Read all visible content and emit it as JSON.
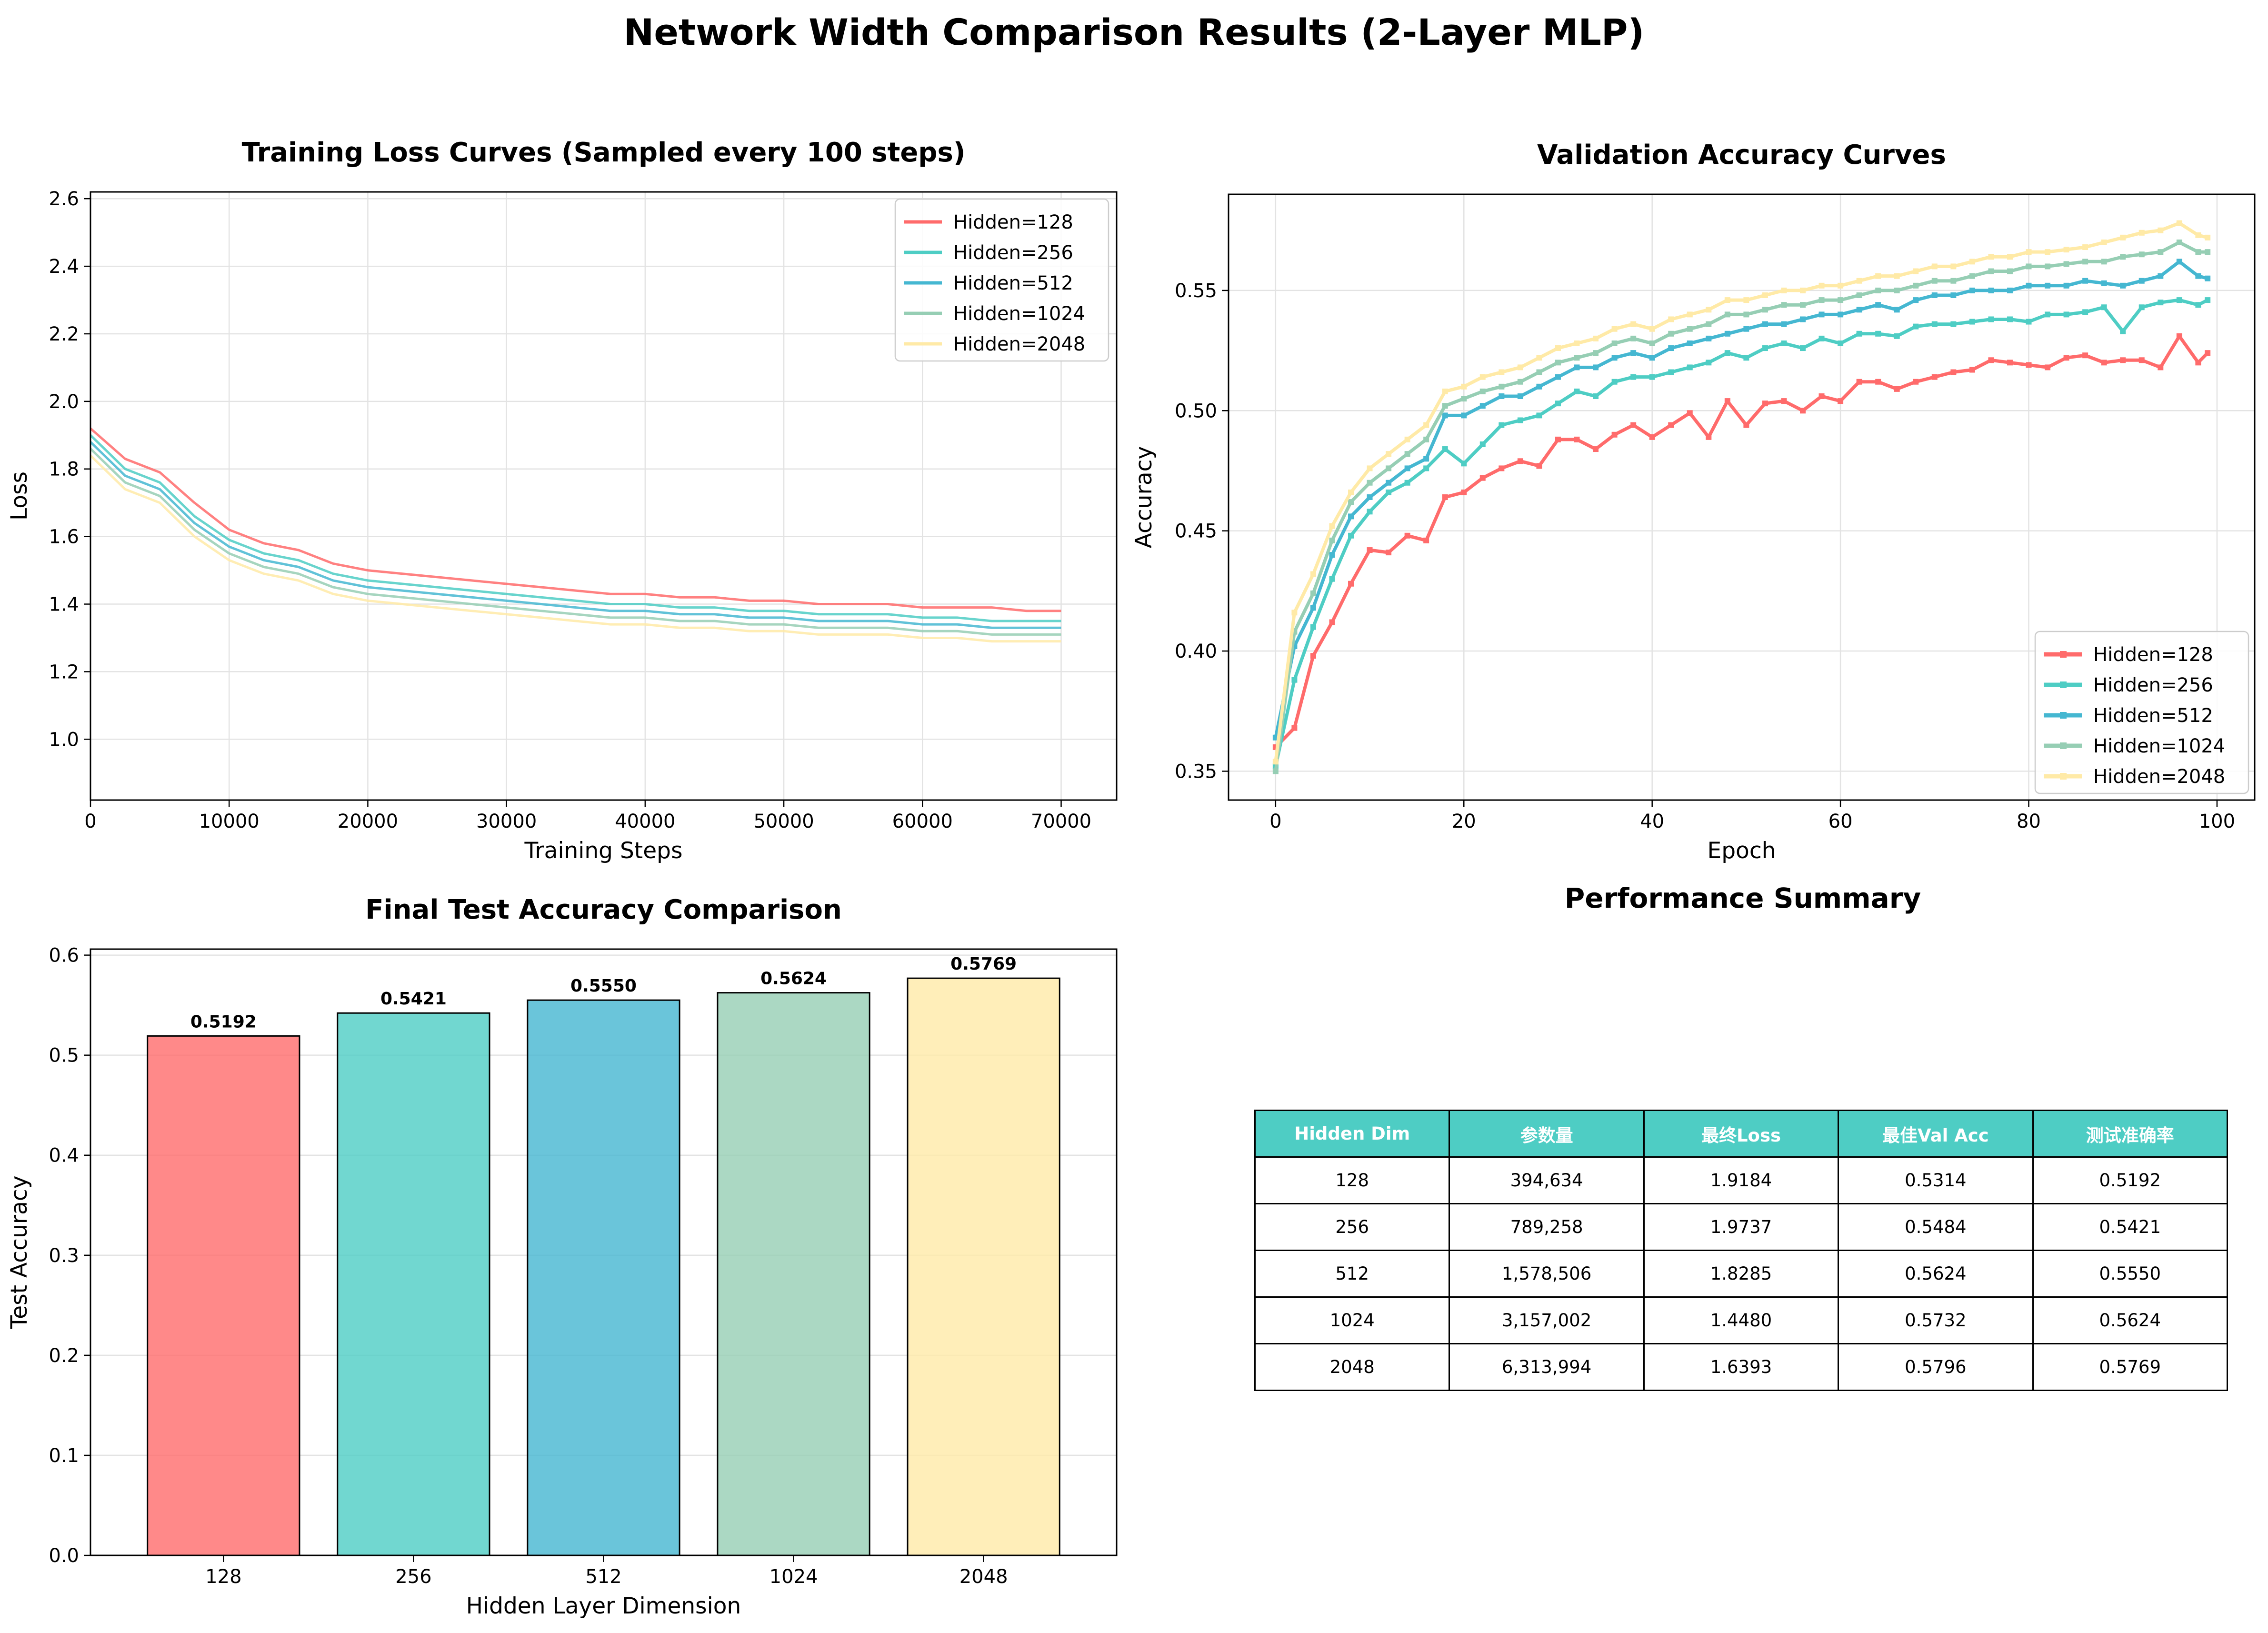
{
  "figure": {
    "title": "Network Width Comparison Results (2-Layer MLP)"
  },
  "colors": {
    "128": "#ff6b6b",
    "256": "#4ecdc4",
    "512": "#45b7d1",
    "1024": "#96ceb4",
    "2048": "#ffeaa7"
  },
  "chart_data": [
    {
      "type": "line",
      "title": "Training Loss Curves (Sampled every 100 steps)",
      "xlabel": "Training Steps",
      "ylabel": "Loss",
      "xlim": [
        0,
        74000
      ],
      "ylim": [
        0.82,
        2.62
      ],
      "xticks": [
        0,
        10000,
        20000,
        30000,
        40000,
        50000,
        60000,
        70000
      ],
      "yticks": [
        1.0,
        1.2,
        1.4,
        1.6,
        1.8,
        2.0,
        2.2,
        2.4,
        2.6
      ],
      "grid": true,
      "legend_position": "upper right",
      "series": [
        {
          "name": "Hidden=128",
          "color": "#ff6b6b",
          "x": [
            0,
            2500,
            5000,
            7500,
            10000,
            12500,
            15000,
            17500,
            20000,
            22500,
            25000,
            27500,
            30000,
            32500,
            35000,
            37500,
            40000,
            42500,
            45000,
            47500,
            50000,
            52500,
            55000,
            57500,
            60000,
            62500,
            65000,
            67500,
            70000
          ],
          "y": [
            1.92,
            1.83,
            1.79,
            1.7,
            1.62,
            1.58,
            1.56,
            1.52,
            1.5,
            1.49,
            1.48,
            1.47,
            1.46,
            1.45,
            1.44,
            1.43,
            1.43,
            1.42,
            1.42,
            1.41,
            1.41,
            1.4,
            1.4,
            1.4,
            1.39,
            1.39,
            1.39,
            1.38,
            1.38
          ]
        },
        {
          "name": "Hidden=256",
          "color": "#4ecdc4",
          "x": [
            0,
            2500,
            5000,
            7500,
            10000,
            12500,
            15000,
            17500,
            20000,
            22500,
            25000,
            27500,
            30000,
            32500,
            35000,
            37500,
            40000,
            42500,
            45000,
            47500,
            50000,
            52500,
            55000,
            57500,
            60000,
            62500,
            65000,
            67500,
            70000
          ],
          "y": [
            1.9,
            1.8,
            1.76,
            1.66,
            1.59,
            1.55,
            1.53,
            1.49,
            1.47,
            1.46,
            1.45,
            1.44,
            1.43,
            1.42,
            1.41,
            1.4,
            1.4,
            1.39,
            1.39,
            1.38,
            1.38,
            1.37,
            1.37,
            1.37,
            1.36,
            1.36,
            1.35,
            1.35,
            1.35
          ]
        },
        {
          "name": "Hidden=512",
          "color": "#45b7d1",
          "x": [
            0,
            2500,
            5000,
            7500,
            10000,
            12500,
            15000,
            17500,
            20000,
            22500,
            25000,
            27500,
            30000,
            32500,
            35000,
            37500,
            40000,
            42500,
            45000,
            47500,
            50000,
            52500,
            55000,
            57500,
            60000,
            62500,
            65000,
            67500,
            70000
          ],
          "y": [
            1.88,
            1.78,
            1.74,
            1.64,
            1.57,
            1.53,
            1.51,
            1.47,
            1.45,
            1.44,
            1.43,
            1.42,
            1.41,
            1.4,
            1.39,
            1.38,
            1.38,
            1.37,
            1.37,
            1.36,
            1.36,
            1.35,
            1.35,
            1.35,
            1.34,
            1.34,
            1.33,
            1.33,
            1.33
          ]
        },
        {
          "name": "Hidden=1024",
          "color": "#96ceb4",
          "x": [
            0,
            2500,
            5000,
            7500,
            10000,
            12500,
            15000,
            17500,
            20000,
            22500,
            25000,
            27500,
            30000,
            32500,
            35000,
            37500,
            40000,
            42500,
            45000,
            47500,
            50000,
            52500,
            55000,
            57500,
            60000,
            62500,
            65000,
            67500,
            70000
          ],
          "y": [
            1.86,
            1.76,
            1.72,
            1.62,
            1.55,
            1.51,
            1.49,
            1.45,
            1.43,
            1.42,
            1.41,
            1.4,
            1.39,
            1.38,
            1.37,
            1.36,
            1.36,
            1.35,
            1.35,
            1.34,
            1.34,
            1.33,
            1.33,
            1.33,
            1.32,
            1.32,
            1.31,
            1.31,
            1.31
          ]
        },
        {
          "name": "Hidden=2048",
          "color": "#ffeaa7",
          "x": [
            0,
            2500,
            5000,
            7500,
            10000,
            12500,
            15000,
            17500,
            20000,
            22500,
            25000,
            27500,
            30000,
            32500,
            35000,
            37500,
            40000,
            42500,
            45000,
            47500,
            50000,
            52500,
            55000,
            57500,
            60000,
            62500,
            65000,
            67500,
            70000
          ],
          "y": [
            1.84,
            1.74,
            1.7,
            1.6,
            1.53,
            1.49,
            1.47,
            1.43,
            1.41,
            1.4,
            1.39,
            1.38,
            1.37,
            1.36,
            1.35,
            1.34,
            1.34,
            1.33,
            1.33,
            1.32,
            1.32,
            1.31,
            1.31,
            1.31,
            1.3,
            1.3,
            1.29,
            1.29,
            1.29
          ]
        }
      ]
    },
    {
      "type": "line",
      "title": "Validation Accuracy Curves",
      "xlabel": "Epoch",
      "ylabel": "Accuracy",
      "xlim": [
        -5,
        104
      ],
      "ylim": [
        0.338,
        0.59
      ],
      "xticks": [
        0,
        20,
        40,
        60,
        80,
        100
      ],
      "yticks": [
        0.35,
        0.4,
        0.45,
        0.5,
        0.55
      ],
      "grid": true,
      "legend_position": "lower right",
      "series": [
        {
          "name": "Hidden=128",
          "color": "#ff6b6b",
          "x": [
            0,
            2,
            4,
            6,
            8,
            10,
            12,
            14,
            16,
            18,
            20,
            22,
            24,
            26,
            28,
            30,
            32,
            34,
            36,
            38,
            40,
            42,
            44,
            46,
            48,
            50,
            52,
            54,
            56,
            58,
            60,
            62,
            64,
            66,
            68,
            70,
            72,
            74,
            76,
            78,
            80,
            82,
            84,
            86,
            88,
            90,
            92,
            94,
            96,
            98,
            99
          ],
          "y": [
            0.36,
            0.368,
            0.398,
            0.412,
            0.428,
            0.442,
            0.441,
            0.448,
            0.446,
            0.464,
            0.466,
            0.472,
            0.476,
            0.479,
            0.477,
            0.488,
            0.488,
            0.484,
            0.49,
            0.494,
            0.489,
            0.494,
            0.499,
            0.489,
            0.504,
            0.494,
            0.503,
            0.504,
            0.5,
            0.506,
            0.504,
            0.512,
            0.512,
            0.509,
            0.512,
            0.514,
            0.516,
            0.517,
            0.521,
            0.52,
            0.519,
            0.518,
            0.522,
            0.523,
            0.52,
            0.521,
            0.521,
            0.518,
            0.531,
            0.52,
            0.524
          ]
        },
        {
          "name": "Hidden=256",
          "color": "#4ecdc4",
          "x": [
            0,
            2,
            4,
            6,
            8,
            10,
            12,
            14,
            16,
            18,
            20,
            22,
            24,
            26,
            28,
            30,
            32,
            34,
            36,
            38,
            40,
            42,
            44,
            46,
            48,
            50,
            52,
            54,
            56,
            58,
            60,
            62,
            64,
            66,
            68,
            70,
            72,
            74,
            76,
            78,
            80,
            82,
            84,
            86,
            88,
            90,
            92,
            94,
            96,
            98,
            99
          ],
          "y": [
            0.352,
            0.388,
            0.41,
            0.43,
            0.448,
            0.458,
            0.466,
            0.47,
            0.476,
            0.484,
            0.478,
            0.486,
            0.494,
            0.496,
            0.498,
            0.503,
            0.508,
            0.506,
            0.512,
            0.514,
            0.514,
            0.516,
            0.518,
            0.52,
            0.524,
            0.522,
            0.526,
            0.528,
            0.526,
            0.53,
            0.528,
            0.532,
            0.532,
            0.531,
            0.535,
            0.536,
            0.536,
            0.537,
            0.538,
            0.538,
            0.537,
            0.54,
            0.54,
            0.541,
            0.543,
            0.533,
            0.543,
            0.545,
            0.546,
            0.544,
            0.546
          ]
        },
        {
          "name": "Hidden=512",
          "color": "#45b7d1",
          "x": [
            0,
            2,
            4,
            6,
            8,
            10,
            12,
            14,
            16,
            18,
            20,
            22,
            24,
            26,
            28,
            30,
            32,
            34,
            36,
            38,
            40,
            42,
            44,
            46,
            48,
            50,
            52,
            54,
            56,
            58,
            60,
            62,
            64,
            66,
            68,
            70,
            72,
            74,
            76,
            78,
            80,
            82,
            84,
            86,
            88,
            90,
            92,
            94,
            96,
            98,
            99
          ],
          "y": [
            0.364,
            0.402,
            0.418,
            0.44,
            0.456,
            0.464,
            0.47,
            0.476,
            0.48,
            0.498,
            0.498,
            0.502,
            0.506,
            0.506,
            0.51,
            0.514,
            0.518,
            0.518,
            0.522,
            0.524,
            0.522,
            0.526,
            0.528,
            0.53,
            0.532,
            0.534,
            0.536,
            0.536,
            0.538,
            0.54,
            0.54,
            0.542,
            0.544,
            0.542,
            0.546,
            0.548,
            0.548,
            0.55,
            0.55,
            0.55,
            0.552,
            0.552,
            0.552,
            0.554,
            0.553,
            0.552,
            0.554,
            0.556,
            0.562,
            0.556,
            0.555
          ]
        },
        {
          "name": "Hidden=1024",
          "color": "#96ceb4",
          "x": [
            0,
            2,
            4,
            6,
            8,
            10,
            12,
            14,
            16,
            18,
            20,
            22,
            24,
            26,
            28,
            30,
            32,
            34,
            36,
            38,
            40,
            42,
            44,
            46,
            48,
            50,
            52,
            54,
            56,
            58,
            60,
            62,
            64,
            66,
            68,
            70,
            72,
            74,
            76,
            78,
            80,
            82,
            84,
            86,
            88,
            90,
            92,
            94,
            96,
            98,
            99
          ],
          "y": [
            0.35,
            0.408,
            0.424,
            0.446,
            0.462,
            0.47,
            0.476,
            0.482,
            0.488,
            0.502,
            0.505,
            0.508,
            0.51,
            0.512,
            0.516,
            0.52,
            0.522,
            0.524,
            0.528,
            0.53,
            0.528,
            0.532,
            0.534,
            0.536,
            0.54,
            0.54,
            0.542,
            0.544,
            0.544,
            0.546,
            0.546,
            0.548,
            0.55,
            0.55,
            0.552,
            0.554,
            0.554,
            0.556,
            0.558,
            0.558,
            0.56,
            0.56,
            0.561,
            0.562,
            0.562,
            0.564,
            0.565,
            0.566,
            0.57,
            0.566,
            0.566
          ]
        },
        {
          "name": "Hidden=2048",
          "color": "#ffeaa7",
          "x": [
            0,
            2,
            4,
            6,
            8,
            10,
            12,
            14,
            16,
            18,
            20,
            22,
            24,
            26,
            28,
            30,
            32,
            34,
            36,
            38,
            40,
            42,
            44,
            46,
            48,
            50,
            52,
            54,
            56,
            58,
            60,
            62,
            64,
            66,
            68,
            70,
            72,
            74,
            76,
            78,
            80,
            82,
            84,
            86,
            88,
            90,
            92,
            94,
            96,
            98,
            99
          ],
          "y": [
            0.354,
            0.416,
            0.432,
            0.452,
            0.466,
            0.476,
            0.482,
            0.488,
            0.494,
            0.508,
            0.51,
            0.514,
            0.516,
            0.518,
            0.522,
            0.526,
            0.528,
            0.53,
            0.534,
            0.536,
            0.534,
            0.538,
            0.54,
            0.542,
            0.546,
            0.546,
            0.548,
            0.55,
            0.55,
            0.552,
            0.552,
            0.554,
            0.556,
            0.556,
            0.558,
            0.56,
            0.56,
            0.562,
            0.564,
            0.564,
            0.566,
            0.566,
            0.567,
            0.568,
            0.57,
            0.572,
            0.574,
            0.575,
            0.578,
            0.573,
            0.572
          ]
        }
      ]
    },
    {
      "type": "bar",
      "title": "Final Test Accuracy Comparison",
      "xlabel": "Hidden Layer Dimension",
      "ylabel": "Test Accuracy",
      "ylim": [
        0,
        0.606
      ],
      "yticks": [
        0.0,
        0.1,
        0.2,
        0.3,
        0.4,
        0.5,
        0.6
      ],
      "grid": true,
      "categories": [
        "128",
        "256",
        "512",
        "1024",
        "2048"
      ],
      "values": [
        0.5192,
        0.5421,
        0.555,
        0.5624,
        0.5769
      ],
      "value_labels": [
        "0.5192",
        "0.5421",
        "0.5550",
        "0.5624",
        "0.5769"
      ],
      "colors": [
        "#ff6b6b",
        "#4ecdc4",
        "#45b7d1",
        "#96ceb4",
        "#ffeaa7"
      ]
    },
    {
      "type": "table",
      "title": "Performance Summary",
      "columns": [
        "Hidden Dim",
        "参数量",
        "最终Loss",
        "最佳Val Acc",
        "测试准确率"
      ],
      "rows": [
        [
          "128",
          "394,634",
          "1.9184",
          "0.5314",
          "0.5192"
        ],
        [
          "256",
          "789,258",
          "1.9737",
          "0.5484",
          "0.5421"
        ],
        [
          "512",
          "1,578,506",
          "1.8285",
          "0.5624",
          "0.5550"
        ],
        [
          "1024",
          "3,157,002",
          "1.4480",
          "0.5732",
          "0.5624"
        ],
        [
          "2048",
          "6,313,994",
          "1.6393",
          "0.5796",
          "0.5769"
        ]
      ]
    }
  ]
}
